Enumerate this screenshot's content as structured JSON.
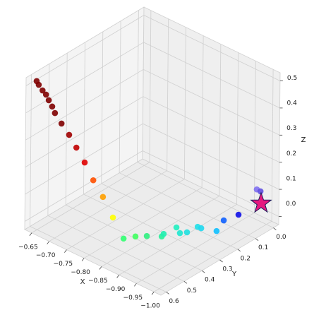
{
  "chart_data": {
    "type": "scatter3d",
    "xlabel": "X",
    "ylabel": "Y",
    "zlabel": "Z",
    "xlim": [
      -1.02,
      -0.63
    ],
    "ylim": [
      -0.03,
      0.63
    ],
    "zlim": [
      -0.03,
      0.53
    ],
    "xticks": [
      {
        "value": -0.65,
        "label": "−0.65"
      },
      {
        "value": -0.7,
        "label": "−0.70"
      },
      {
        "value": -0.75,
        "label": "−0.75"
      },
      {
        "value": -0.8,
        "label": "−0.80"
      },
      {
        "value": -0.85,
        "label": "−0.85"
      },
      {
        "value": -0.9,
        "label": "−0.90"
      },
      {
        "value": -0.95,
        "label": "−0.95"
      },
      {
        "value": -1.0,
        "label": "−1.00"
      }
    ],
    "yticks": [
      {
        "value": 0,
        "label": "0.0"
      },
      {
        "value": 0.1,
        "label": "0.1"
      },
      {
        "value": 0.2,
        "label": "0.2"
      },
      {
        "value": 0.3,
        "label": "0.3"
      },
      {
        "value": 0.4,
        "label": "0.4"
      },
      {
        "value": 0.5,
        "label": "0.5"
      },
      {
        "value": 0.6,
        "label": "0.6"
      }
    ],
    "zticks": [
      {
        "value": 0,
        "label": "0.0"
      },
      {
        "value": 0.1,
        "label": "0.1"
      },
      {
        "value": 0.2,
        "label": "0.2"
      },
      {
        "value": 0.3,
        "label": "0.3"
      },
      {
        "value": 0.4,
        "label": "0.4"
      },
      {
        "value": 0.5,
        "label": "0.5"
      }
    ],
    "grid": true,
    "points": {
      "x": [
        -0.645,
        -0.651,
        -0.662,
        -0.672,
        -0.68,
        -0.69,
        -0.698,
        -0.717,
        -0.739,
        -0.76,
        -0.784,
        -0.809,
        -0.837,
        -0.866,
        -0.9,
        -0.907,
        -0.913,
        -0.92,
        -0.927,
        -0.933,
        -0.94,
        -0.947,
        -0.953,
        -0.96,
        -0.967,
        -0.973,
        -0.98,
        -0.987,
        -0.993,
        -1.0
      ],
      "y": [
        0.6,
        0.6,
        0.6,
        0.6,
        0.6,
        0.6,
        0.6,
        0.6,
        0.6,
        0.6,
        0.6,
        0.6,
        0.6,
        0.6,
        0.606,
        0.553,
        0.501,
        0.431,
        0.434,
        0.374,
        0.368,
        0.342,
        0.294,
        0.288,
        0.215,
        0.187,
        0.118,
        0.03,
        0.021,
        0.031
      ],
      "z": [
        0.515,
        0.505,
        0.491,
        0.482,
        0.466,
        0.449,
        0.43,
        0.403,
        0.375,
        0.341,
        0.301,
        0.251,
        0.207,
        0.149,
        0.095,
        0.086,
        0.071,
        0.046,
        0.061,
        0.065,
        0.046,
        0.043,
        0.048,
        0.045,
        0.01,
        0.042,
        0.04,
        0.103,
        0.096,
        0.06
      ],
      "colors": [
        "#800000",
        "#800000",
        "#800000",
        "#800000",
        "#800000",
        "#800000",
        "#800000",
        "#800000",
        "#a00000",
        "#c00000",
        "#e00000",
        "#ff5000",
        "#ffa000",
        "#ffff00",
        "#30ff70",
        "#40ff60",
        "#30f080",
        "#2af09a",
        "#20f0b0",
        "#20f0c0",
        "#1ee8d0",
        "#20e0e0",
        "#20e0e8",
        "#20d8f0",
        "#10c0ff",
        "#1060ff",
        "#1010e8",
        "#8070f0",
        "#6050e0",
        "#101080"
      ]
    },
    "marker": {
      "x": -1.0,
      "y": 0.031,
      "z": 0.06,
      "color": "#e6197f",
      "edgecolor": "#1a1a5a"
    }
  }
}
